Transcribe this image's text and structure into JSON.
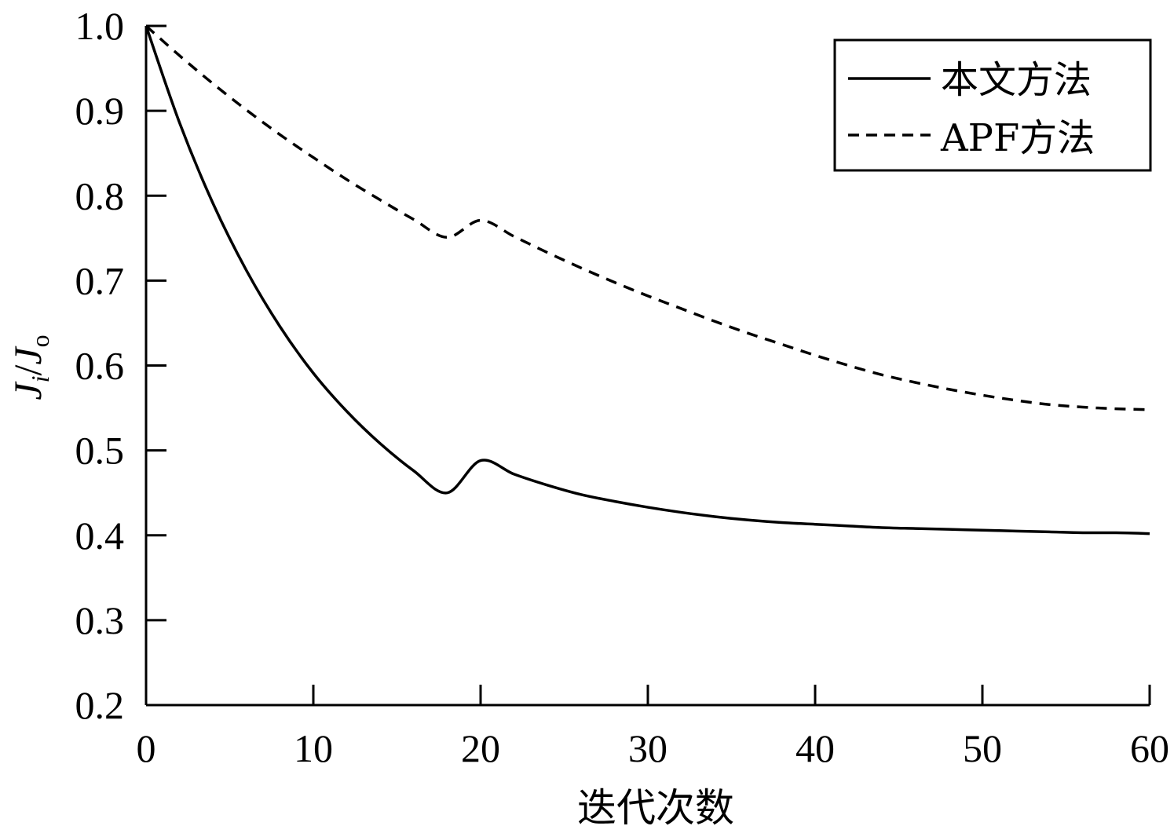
{
  "chart_data": {
    "type": "line",
    "title": "",
    "xlabel": "迭代次数",
    "ylabel": {
      "J1": "J",
      "sub1": "i",
      "slash": "/",
      "J2": "J",
      "sub2": "o"
    },
    "xlim": [
      0,
      60
    ],
    "ylim": [
      0.2,
      1.0
    ],
    "xticks": [
      "0",
      "10",
      "20",
      "30",
      "40",
      "50",
      "60"
    ],
    "yticks": [
      "0.2",
      "0.3",
      "0.4",
      "0.5",
      "0.6",
      "0.7",
      "0.8",
      "0.9",
      "1.0"
    ],
    "grid": false,
    "legend": {
      "position": "top-right"
    },
    "x": [
      0,
      2,
      4,
      6,
      8,
      10,
      12,
      14,
      16,
      18,
      20,
      22,
      24,
      26,
      28,
      30,
      32,
      34,
      36,
      38,
      40,
      42,
      44,
      46,
      48,
      50,
      52,
      54,
      56,
      58,
      60
    ],
    "series": [
      {
        "name": "本文方法",
        "style": "solid",
        "color": "#000000",
        "values": [
          1.0,
          0.886,
          0.791,
          0.712,
          0.646,
          0.591,
          0.546,
          0.508,
          0.476,
          0.45,
          0.488,
          0.472,
          0.459,
          0.448,
          0.44,
          0.433,
          0.427,
          0.422,
          0.418,
          0.415,
          0.413,
          0.411,
          0.409,
          0.408,
          0.407,
          0.406,
          0.405,
          0.404,
          0.403,
          0.403,
          0.402
        ]
      },
      {
        "name": "APF方法",
        "style": "dashed",
        "color": "#000000",
        "values": [
          1.0,
          0.965,
          0.932,
          0.901,
          0.872,
          0.845,
          0.819,
          0.795,
          0.772,
          0.751,
          0.771,
          0.752,
          0.733,
          0.715,
          0.698,
          0.682,
          0.667,
          0.652,
          0.638,
          0.625,
          0.612,
          0.6,
          0.589,
          0.58,
          0.572,
          0.565,
          0.559,
          0.554,
          0.551,
          0.549,
          0.548
        ]
      }
    ]
  }
}
